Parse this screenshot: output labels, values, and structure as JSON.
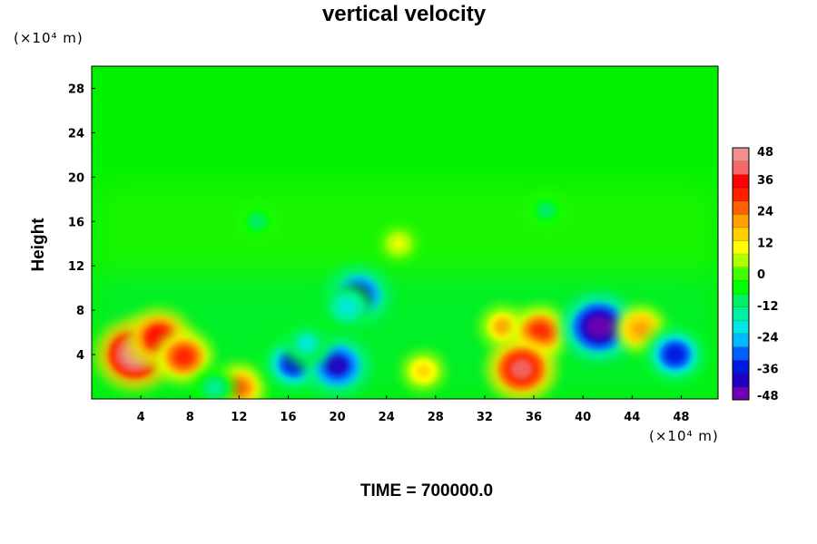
{
  "chart_data": {
    "type": "heatmap",
    "title": "vertical velocity",
    "ylabel": "Height",
    "xlabel": "",
    "x_unit": "(×10⁴ m)",
    "y_unit": "(×10⁴ m)",
    "footer": "TIME = 700000.0",
    "xlim": [
      0,
      51
    ],
    "ylim": [
      0,
      30
    ],
    "x_ticks": [
      4,
      8,
      12,
      16,
      20,
      24,
      28,
      32,
      36,
      40,
      44,
      48
    ],
    "y_ticks": [
      4,
      8,
      12,
      16,
      20,
      24,
      28
    ],
    "colorbar": {
      "range": [
        -48,
        48
      ],
      "ticks": [
        48,
        36,
        24,
        12,
        0,
        -12,
        -24,
        -36,
        -48
      ],
      "colors": [
        "#7000b0",
        "#2000c0",
        "#0018e0",
        "#0060ff",
        "#00b8ff",
        "#00e8e0",
        "#00f0a0",
        "#00f060",
        "#00ff00",
        "#40ff00",
        "#b0ff00",
        "#ffff00",
        "#ffd000",
        "#ffa000",
        "#ff6000",
        "#ff2000",
        "#ff0000",
        "#f06868",
        "#f09090"
      ]
    },
    "features": [
      {
        "x": 3.5,
        "y": 4.0,
        "value": 48
      },
      {
        "x": 5.5,
        "y": 5.5,
        "value": 36
      },
      {
        "x": 7.5,
        "y": 3.8,
        "value": 30
      },
      {
        "x": 12.0,
        "y": 1.0,
        "value": 24
      },
      {
        "x": 10.0,
        "y": 1.0,
        "value": -14
      },
      {
        "x": 16.5,
        "y": 3.2,
        "value": -36
      },
      {
        "x": 20.0,
        "y": 3.0,
        "value": -40
      },
      {
        "x": 21.7,
        "y": 9.3,
        "value": -38
      },
      {
        "x": 20.8,
        "y": 8.3,
        "value": -22
      },
      {
        "x": 17.5,
        "y": 5.0,
        "value": -20
      },
      {
        "x": 27.0,
        "y": 2.5,
        "value": 14
      },
      {
        "x": 33.5,
        "y": 6.5,
        "value": 18
      },
      {
        "x": 36.5,
        "y": 6.0,
        "value": 30
      },
      {
        "x": 35.0,
        "y": 2.7,
        "value": 40
      },
      {
        "x": 41.3,
        "y": 6.5,
        "value": -48
      },
      {
        "x": 44.7,
        "y": 6.3,
        "value": 22
      },
      {
        "x": 47.5,
        "y": 4.0,
        "value": -36
      },
      {
        "x": 13.5,
        "y": 16.0,
        "value": -10
      },
      {
        "x": 37.0,
        "y": 17.0,
        "value": -10
      },
      {
        "x": 25.0,
        "y": 14.0,
        "value": 8
      }
    ]
  }
}
